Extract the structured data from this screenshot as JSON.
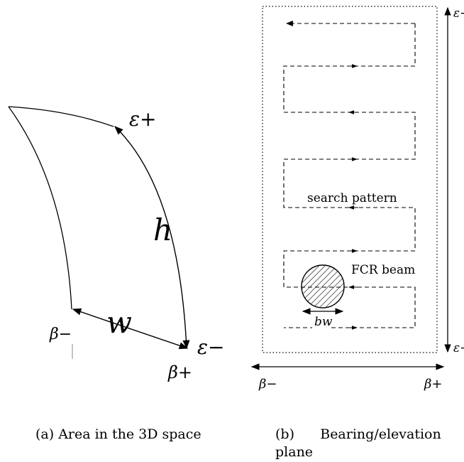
{
  "panel_a": {
    "labels": {
      "eps_plus": "ε+",
      "eps_minus": "ε−",
      "h": "h",
      "w": "w",
      "beta_minus": "β−",
      "beta_plus": "β+"
    },
    "caption": "(a) Area in the 3D space"
  },
  "panel_b": {
    "labels": {
      "eps_plus": "ε+",
      "eps_minus": "ε−",
      "search_pattern": "search pattern",
      "fcr_beam": "FCR beam",
      "bw": "bw",
      "beta_minus": "β−",
      "beta_plus": "β+"
    },
    "caption_line1": "(b)      Bearing/elevation",
    "caption_line2": "plane"
  }
}
